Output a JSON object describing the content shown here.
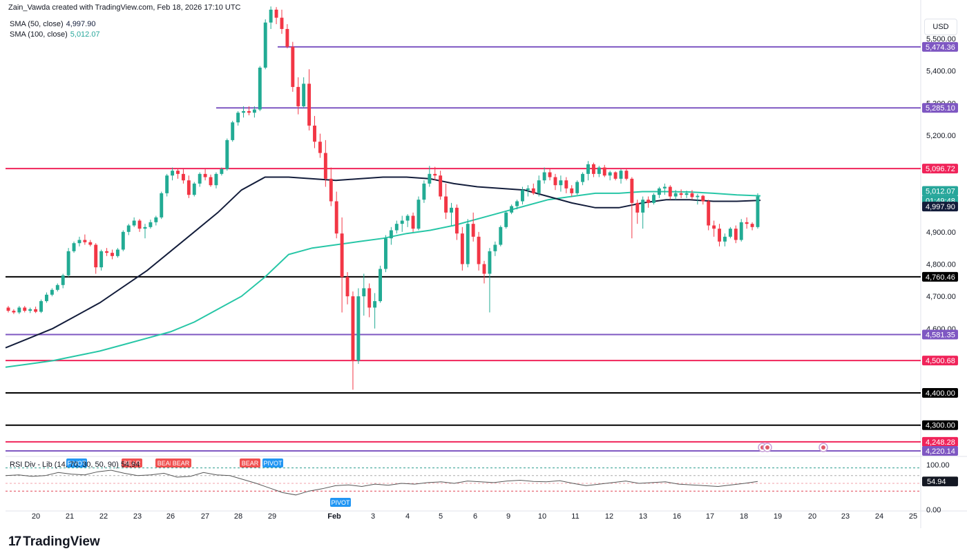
{
  "header": {
    "attribution": "Zain_Vawda created with TradingView.com, Feb 18, 2026 17:10 UTC",
    "sma50_label": "SMA (50, close)",
    "sma50_value": "4,997.90",
    "sma100_label": "SMA (100, close)",
    "sma100_value": "5,012.07",
    "currency": "USD"
  },
  "rsi_panel": {
    "label": "RSI Div - Lib (14, 70, 30, 50, 90)",
    "value": "54.94",
    "axis_ticks": [
      "100.00",
      "0.00"
    ],
    "markers": [
      {
        "text": "PIVOT",
        "type": "pivot",
        "date": "Jan 21"
      },
      {
        "text": "BEAR",
        "type": "bear",
        "date": "Jan 23"
      },
      {
        "text": "BEAR",
        "type": "bear",
        "date": "Jan 26"
      },
      {
        "text": "BEAR",
        "type": "bear",
        "date": "Jan 26"
      },
      {
        "text": "BEAR",
        "type": "bear",
        "date": "Jan 28"
      },
      {
        "text": "PIVOT",
        "type": "pivot",
        "date": "Jan 29"
      },
      {
        "text": "PIVOT",
        "type": "pivot",
        "date": "Feb 2"
      }
    ]
  },
  "logo": {
    "text": "TradingView"
  },
  "colors": {
    "bull": "#22ab94",
    "bear": "#f23645",
    "sma50": "#131d3b",
    "sma100": "#26c6a6",
    "purple_level": "#7e57c2",
    "red_level": "#f0245a",
    "black_level": "#000000",
    "rsi_line": "#555555"
  },
  "chart_data": {
    "type": "candlestick",
    "price_axis": {
      "min": 4205,
      "max": 5620,
      "ticks": [
        "5,500.00",
        "5,400.00",
        "5,300.00",
        "5,200.00",
        "4,900.00",
        "4,800.00",
        "4,700.00",
        "4,600.00"
      ]
    },
    "x_axis_labels": [
      "20",
      "21",
      "22",
      "23",
      "26",
      "27",
      "28",
      "29",
      "Feb",
      "3",
      "4",
      "5",
      "6",
      "9",
      "10",
      "11",
      "12",
      "13",
      "16",
      "17",
      "18",
      "19",
      "20",
      "23",
      "24",
      "25"
    ],
    "horizontal_levels": [
      {
        "value": 5474.36,
        "label": "5,474.36",
        "color": "purple"
      },
      {
        "value": 5285.1,
        "label": "5,285.10",
        "color": "purple"
      },
      {
        "value": 5096.72,
        "label": "5,096.72",
        "color": "red"
      },
      {
        "value": 4760.46,
        "label": "4,760.46",
        "color": "black"
      },
      {
        "value": 4581.35,
        "label": "4,581.35",
        "color": "purple"
      },
      {
        "value": 4500.68,
        "label": "4,500.68",
        "color": "red"
      },
      {
        "value": 4400.0,
        "label": "4,400.00",
        "color": "black"
      },
      {
        "value": 4300.0,
        "label": "4,300.00",
        "color": "black"
      },
      {
        "value": 4248.28,
        "label": "4,248.28",
        "color": "red"
      },
      {
        "value": 4220.14,
        "label": "4,220.14",
        "color": "purple"
      }
    ],
    "current_labels": {
      "sma100": "5,012.07",
      "countdown": "01:49:48",
      "sma50": "4,997.90"
    },
    "candles": [
      [
        4665,
        4670,
        4650,
        4655
      ],
      [
        4655,
        4660,
        4645,
        4650
      ],
      [
        4650,
        4670,
        4645,
        4665
      ],
      [
        4665,
        4670,
        4650,
        4655
      ],
      [
        4655,
        4665,
        4648,
        4660
      ],
      [
        4660,
        4668,
        4648,
        4652
      ],
      [
        4652,
        4690,
        4648,
        4685
      ],
      [
        4685,
        4712,
        4680,
        4705
      ],
      [
        4705,
        4725,
        4700,
        4720
      ],
      [
        4720,
        4740,
        4715,
        4735
      ],
      [
        4735,
        4770,
        4725,
        4765
      ],
      [
        4765,
        4850,
        4760,
        4840
      ],
      [
        4840,
        4870,
        4835,
        4865
      ],
      [
        4865,
        4885,
        4855,
        4875
      ],
      [
        4875,
        4892,
        4860,
        4868
      ],
      [
        4868,
        4875,
        4855,
        4860
      ],
      [
        4860,
        4865,
        4770,
        4790
      ],
      [
        4790,
        4845,
        4780,
        4840
      ],
      [
        4840,
        4850,
        4825,
        4835
      ],
      [
        4835,
        4845,
        4815,
        4825
      ],
      [
        4825,
        4850,
        4820,
        4845
      ],
      [
        4845,
        4905,
        4840,
        4900
      ],
      [
        4900,
        4925,
        4890,
        4920
      ],
      [
        4920,
        4945,
        4915,
        4935
      ],
      [
        4935,
        4940,
        4900,
        4910
      ],
      [
        4910,
        4925,
        4880,
        4915
      ],
      [
        4915,
        4938,
        4910,
        4930
      ],
      [
        4930,
        4950,
        4920,
        4945
      ],
      [
        4945,
        5025,
        4940,
        5020
      ],
      [
        5020,
        5080,
        5010,
        5075
      ],
      [
        5075,
        5100,
        5060,
        5090
      ],
      [
        5090,
        5098,
        5065,
        5080
      ],
      [
        5080,
        5095,
        5050,
        5060
      ],
      [
        5060,
        5075,
        5005,
        5015
      ],
      [
        5015,
        5055,
        5010,
        5050
      ],
      [
        5050,
        5085,
        5040,
        5080
      ],
      [
        5080,
        5095,
        5060,
        5070
      ],
      [
        5070,
        5078,
        5040,
        5045
      ],
      [
        5045,
        5085,
        5035,
        5080
      ],
      [
        5080,
        5100,
        5075,
        5095
      ],
      [
        5095,
        5190,
        5090,
        5185
      ],
      [
        5185,
        5245,
        5180,
        5240
      ],
      [
        5240,
        5275,
        5230,
        5270
      ],
      [
        5270,
        5290,
        5255,
        5275
      ],
      [
        5275,
        5290,
        5262,
        5270
      ],
      [
        5270,
        5290,
        5255,
        5280
      ],
      [
        5280,
        5415,
        5275,
        5410
      ],
      [
        5410,
        5560,
        5405,
        5550
      ],
      [
        5550,
        5600,
        5530,
        5590
      ],
      [
        5590,
        5598,
        5545,
        5565
      ],
      [
        5565,
        5590,
        5515,
        5530
      ],
      [
        5530,
        5545,
        5470,
        5475
      ],
      [
        5475,
        5490,
        5335,
        5350
      ],
      [
        5350,
        5380,
        5265,
        5290
      ],
      [
        5290,
        5380,
        5285,
        5360
      ],
      [
        5360,
        5405,
        5215,
        5230
      ],
      [
        5230,
        5260,
        5160,
        5180
      ],
      [
        5180,
        5205,
        5130,
        5145
      ],
      [
        5145,
        5185,
        5040,
        5065
      ],
      [
        5065,
        5100,
        4980,
        4995
      ],
      [
        4995,
        5025,
        4880,
        4895
      ],
      [
        4895,
        4945,
        4650,
        4760
      ],
      [
        4760,
        4775,
        4675,
        4700
      ],
      [
        4700,
        4715,
        4410,
        4500
      ],
      [
        4500,
        4725,
        4490,
        4700
      ],
      [
        4700,
        4770,
        4640,
        4725
      ],
      [
        4725,
        4740,
        4635,
        4665
      ],
      [
        4665,
        4710,
        4600,
        4685
      ],
      [
        4685,
        4795,
        4680,
        4785
      ],
      [
        4785,
        4890,
        4775,
        4880
      ],
      [
        4880,
        4915,
        4860,
        4905
      ],
      [
        4905,
        4935,
        4895,
        4925
      ],
      [
        4925,
        4950,
        4900,
        4935
      ],
      [
        4935,
        4955,
        4915,
        4950
      ],
      [
        4950,
        4960,
        4900,
        4910
      ],
      [
        4910,
        5010,
        4905,
        5000
      ],
      [
        5000,
        5060,
        4990,
        5050
      ],
      [
        5050,
        5105,
        5040,
        5080
      ],
      [
        5080,
        5102,
        5060,
        5075
      ],
      [
        5075,
        5090,
        5000,
        5010
      ],
      [
        5010,
        5050,
        4940,
        4960
      ],
      [
        4960,
        4990,
        4920,
        4975
      ],
      [
        4975,
        4985,
        4875,
        4895
      ],
      [
        4895,
        4915,
        4780,
        4800
      ],
      [
        4800,
        4940,
        4790,
        4925
      ],
      [
        4925,
        4960,
        4870,
        4885
      ],
      [
        4885,
        4900,
        4780,
        4800
      ],
      [
        4800,
        4810,
        4740,
        4770
      ],
      [
        4770,
        4850,
        4650,
        4840
      ],
      [
        4840,
        4870,
        4825,
        4860
      ],
      [
        4860,
        4920,
        4855,
        4915
      ],
      [
        4915,
        4965,
        4910,
        4960
      ],
      [
        4960,
        4985,
        4955,
        4980
      ],
      [
        4980,
        5000,
        4970,
        4995
      ],
      [
        4995,
        5040,
        4985,
        5030
      ],
      [
        5030,
        5045,
        5010,
        5035
      ],
      [
        5035,
        5050,
        5015,
        5020
      ],
      [
        5020,
        5075,
        5010,
        5060
      ],
      [
        5060,
        5100,
        5050,
        5085
      ],
      [
        5085,
        5095,
        5060,
        5070
      ],
      [
        5070,
        5080,
        5030,
        5045
      ],
      [
        5045,
        5075,
        5025,
        5060
      ],
      [
        5060,
        5070,
        5020,
        5035
      ],
      [
        5035,
        5045,
        5010,
        5020
      ],
      [
        5020,
        5060,
        5015,
        5055
      ],
      [
        5055,
        5085,
        5045,
        5080
      ],
      [
        5080,
        5120,
        5060,
        5110
      ],
      [
        5110,
        5115,
        5070,
        5080
      ],
      [
        5080,
        5105,
        5070,
        5100
      ],
      [
        5100,
        5108,
        5070,
        5075
      ],
      [
        5075,
        5090,
        5060,
        5085
      ],
      [
        5085,
        5088,
        5060,
        5065
      ],
      [
        5065,
        5095,
        5050,
        5090
      ],
      [
        5090,
        5095,
        5060,
        5065
      ],
      [
        5065,
        5070,
        4880,
        4990
      ],
      [
        4990,
        5000,
        4925,
        4960
      ],
      [
        4960,
        5010,
        4910,
        5000
      ],
      [
        5000,
        5010,
        4975,
        4990
      ],
      [
        4990,
        5020,
        4985,
        5015
      ],
      [
        5015,
        5040,
        5005,
        5035
      ],
      [
        5035,
        5050,
        5015,
        5040
      ],
      [
        5040,
        5045,
        5000,
        5010
      ],
      [
        5010,
        5030,
        5000,
        5020
      ],
      [
        5020,
        5032,
        5005,
        5015
      ],
      [
        5015,
        5028,
        5005,
        5020
      ],
      [
        5020,
        5030,
        5000,
        5008
      ],
      [
        5008,
        5018,
        4985,
        5012
      ],
      [
        5012,
        5015,
        4985,
        4995
      ],
      [
        4995,
        5000,
        4905,
        4920
      ],
      [
        4920,
        4935,
        4885,
        4910
      ],
      [
        4910,
        4925,
        4855,
        4870
      ],
      [
        4870,
        4895,
        4855,
        4885
      ],
      [
        4885,
        4915,
        4880,
        4910
      ],
      [
        4910,
        4920,
        4865,
        4875
      ],
      [
        4875,
        4940,
        4870,
        4930
      ],
      [
        4930,
        4945,
        4910,
        4925
      ],
      [
        4925,
        4930,
        4905,
        4915
      ],
      [
        4915,
        5020,
        4910,
        5010
      ]
    ],
    "sma50": [
      4540,
      4570,
      4600,
      4640,
      4680,
      4730,
      4780,
      4840,
      4900,
      4960,
      5030,
      5070,
      5070,
      5065,
      5060,
      5065,
      5070,
      5070,
      5065,
      5050,
      5040,
      5035,
      5030,
      5010,
      4990,
      4975,
      4975,
      4990,
      5000,
      5000,
      4995,
      4995,
      4998
    ],
    "sma100": [
      4480,
      4490,
      4500,
      4515,
      4530,
      4550,
      4570,
      4590,
      4620,
      4660,
      4700,
      4760,
      4830,
      4850,
      4860,
      4870,
      4880,
      4895,
      4905,
      4920,
      4940,
      4960,
      4980,
      5000,
      5010,
      5020,
      5020,
      5025,
      5025,
      5024,
      5020,
      5015,
      5012
    ],
    "rsi": [
      70,
      72,
      68,
      70,
      78,
      74,
      72,
      80,
      84,
      76,
      70,
      72,
      76,
      66,
      68,
      78,
      72,
      70,
      60,
      50,
      38,
      26,
      20,
      30,
      36,
      44,
      46,
      42,
      48,
      45,
      50,
      48,
      52,
      54,
      50,
      56,
      54,
      52,
      56,
      58,
      55,
      54,
      57,
      50,
      44,
      48,
      52,
      56,
      50,
      52,
      54,
      48,
      46,
      44,
      42,
      46,
      50,
      55
    ]
  }
}
